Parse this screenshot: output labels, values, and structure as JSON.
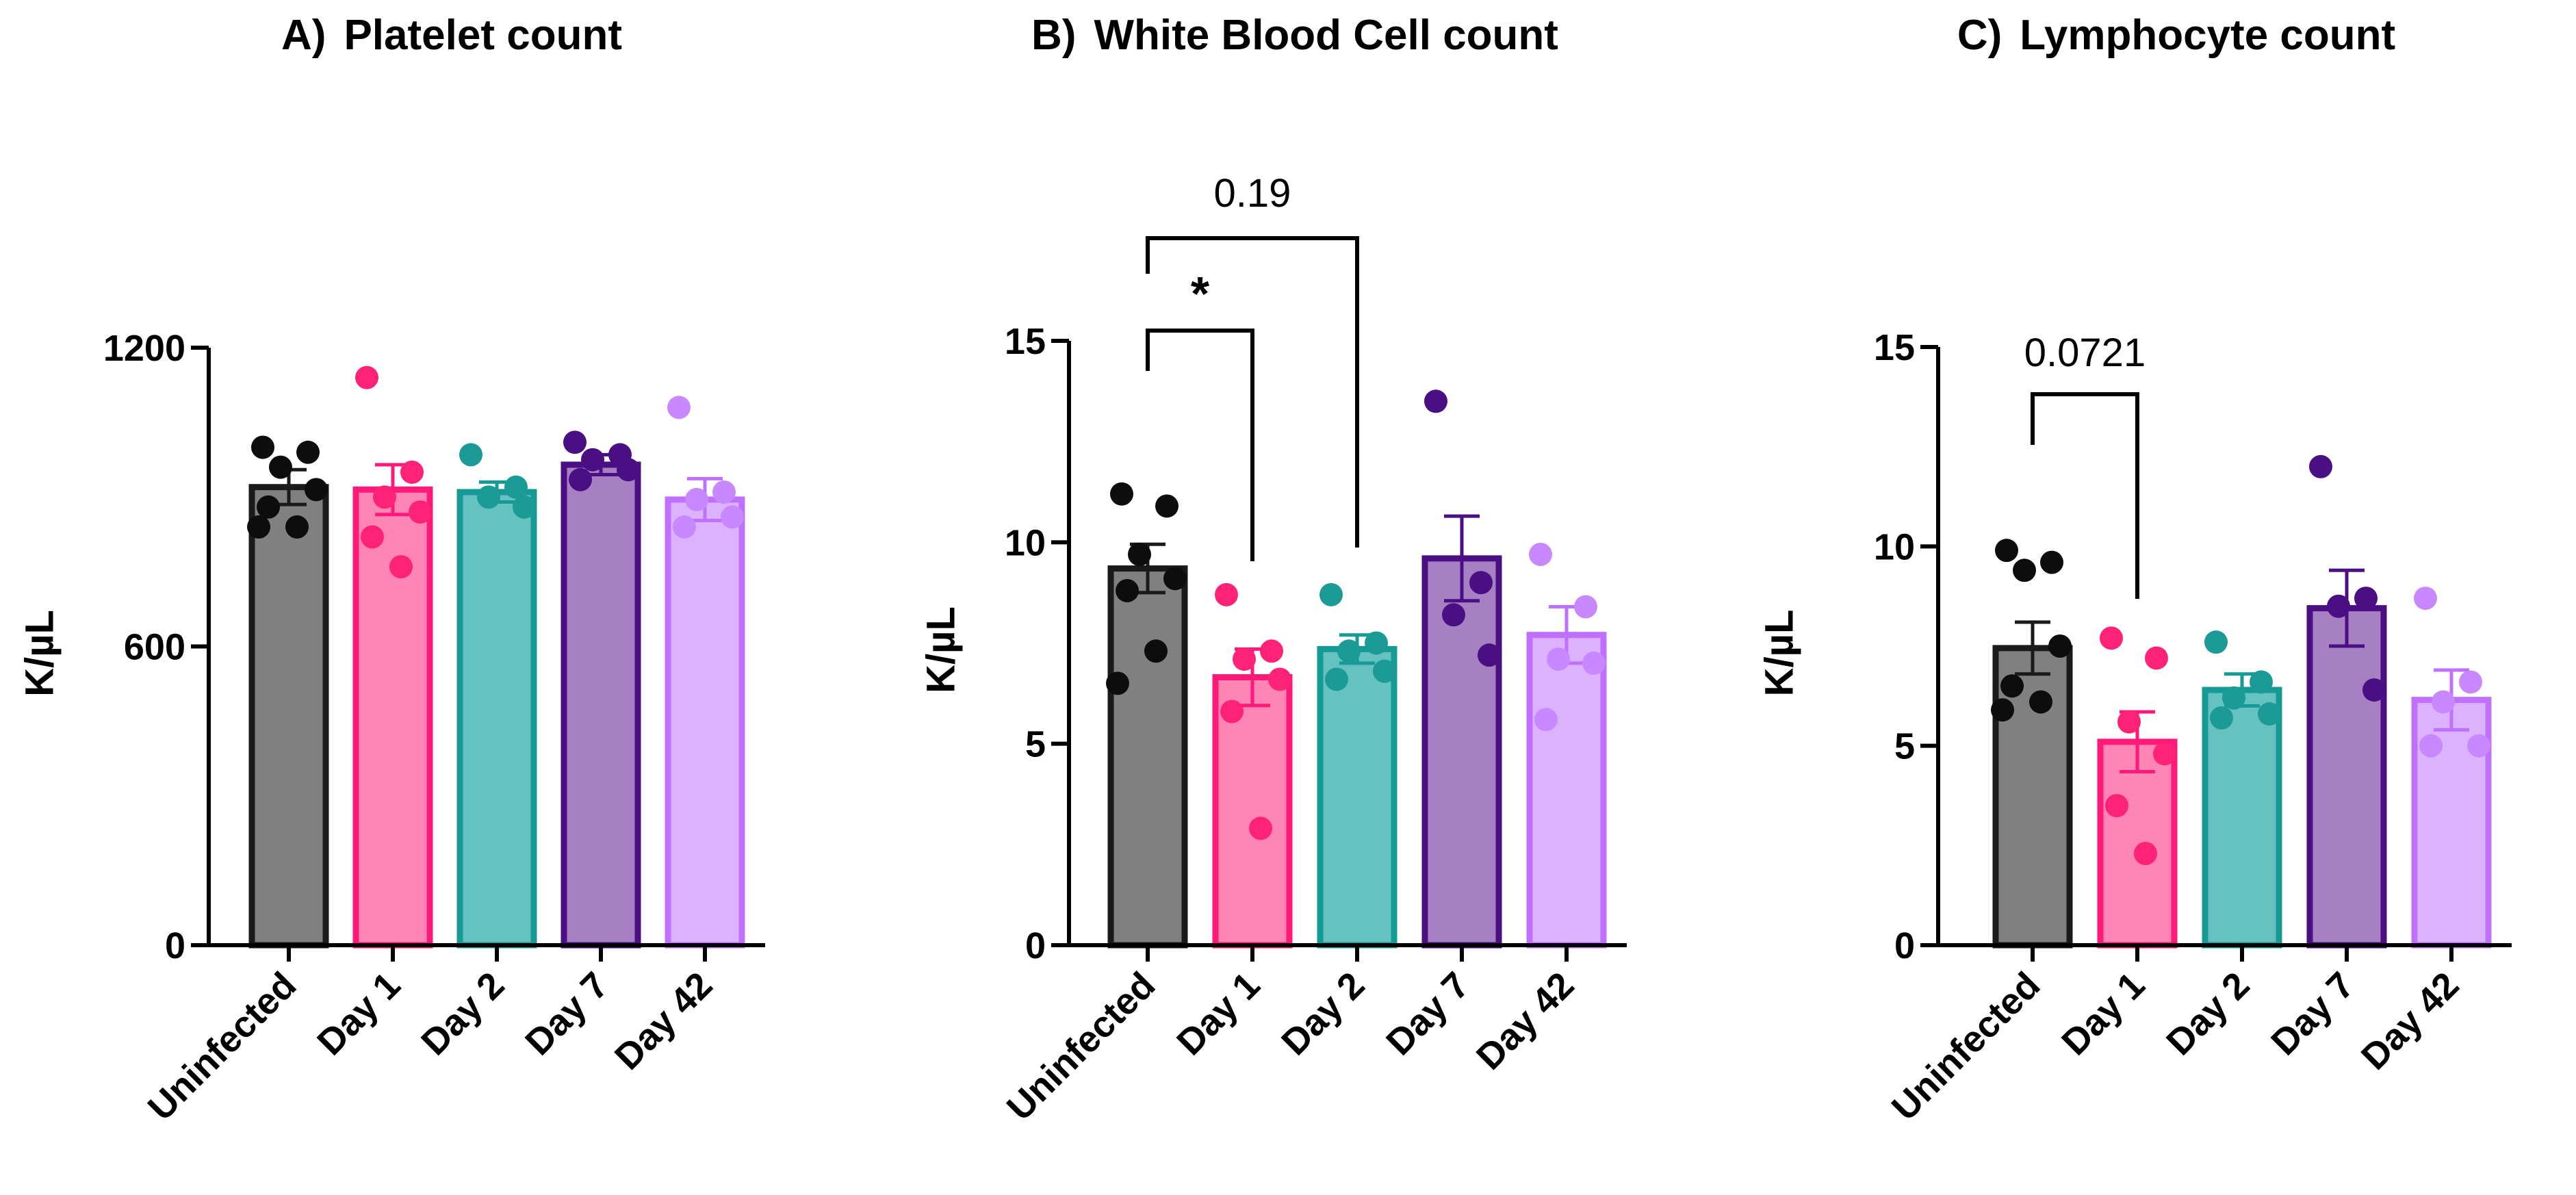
{
  "chart_data": [
    {
      "type": "bar",
      "panel": "A)",
      "title": "Platelet count",
      "ylabel": "K/µL",
      "categories": [
        "Uninfected",
        "Day 1",
        "Day 2",
        "Day 7",
        "Day 42"
      ],
      "ylim": [
        0,
        1200
      ],
      "yticks": [
        0,
        600,
        1200
      ],
      "values": [
        920,
        915,
        910,
        965,
        895
      ],
      "sem": [
        35,
        50,
        20,
        20,
        42
      ],
      "points": [
        [
          1000,
          990,
          960,
          915,
          880,
          840,
          840
        ],
        [
          1140,
          950,
          900,
          870,
          820,
          760
        ],
        [
          985,
          920,
          900,
          880
        ],
        [
          1010,
          985,
          975,
          955,
          935
        ],
        [
          1080,
          910,
          895,
          860,
          840
        ]
      ],
      "annotations": []
    },
    {
      "type": "bar",
      "panel": "B)",
      "title": "White Blood Cell count",
      "ylabel": "K/µL",
      "categories": [
        "Uninfected",
        "Day 1",
        "Day 2",
        "Day 7",
        "Day 42"
      ],
      "ylim": [
        0,
        15
      ],
      "yticks": [
        0,
        5,
        10,
        15
      ],
      "values": [
        9.35,
        6.65,
        7.35,
        9.6,
        7.7
      ],
      "sem": [
        0.6,
        0.7,
        0.35,
        1.05,
        0.7
      ],
      "points": [
        [
          11.2,
          10.9,
          9.7,
          9.1,
          8.8,
          7.3,
          6.5
        ],
        [
          8.7,
          7.3,
          7.1,
          6.6,
          5.8,
          2.9
        ],
        [
          8.7,
          7.5,
          7.3,
          6.8,
          6.6
        ],
        [
          13.5,
          9.0,
          8.2,
          7.2
        ],
        [
          9.7,
          8.4,
          7.1,
          7.0,
          5.6
        ]
      ],
      "annotations": [
        {
          "from": 0,
          "to": 1,
          "text": "*"
        },
        {
          "from": 0,
          "to": 2,
          "text": "0.19"
        }
      ]
    },
    {
      "type": "bar",
      "panel": "C)",
      "title": "Lymphocyte count",
      "ylabel": "K/µL",
      "categories": [
        "Uninfected",
        "Day 1",
        "Day 2",
        "Day 7",
        "Day 42"
      ],
      "ylim": [
        0,
        15
      ],
      "yticks": [
        0,
        5,
        10,
        15
      ],
      "values": [
        7.45,
        5.1,
        6.4,
        8.45,
        6.15
      ],
      "sem": [
        0.65,
        0.75,
        0.4,
        0.95,
        0.75
      ],
      "points": [
        [
          9.9,
          9.6,
          9.4,
          7.5,
          6.5,
          6.1,
          5.9
        ],
        [
          7.7,
          7.2,
          5.6,
          4.8,
          3.5,
          2.3
        ],
        [
          7.6,
          6.6,
          6.2,
          5.8,
          5.7
        ],
        [
          12.0,
          8.7,
          8.5,
          6.4
        ],
        [
          8.7,
          6.6,
          6.1,
          5.0,
          5.0
        ]
      ],
      "annotations": [
        {
          "from": 0,
          "to": 1,
          "text": "0.0721"
        }
      ]
    }
  ],
  "colors": {
    "edge": [
      "#1a1a1a",
      "#ff1a7a",
      "#159a96",
      "#4a0f82",
      "#bf70ff"
    ],
    "fill": [
      "#808080",
      "#ff85b4",
      "#66c2c0",
      "#a780c3",
      "#dcb2ff"
    ],
    "dot": [
      "#0d0d0d",
      "#ff2276",
      "#1b9a96",
      "#4a0f82",
      "#c888ff"
    ]
  }
}
